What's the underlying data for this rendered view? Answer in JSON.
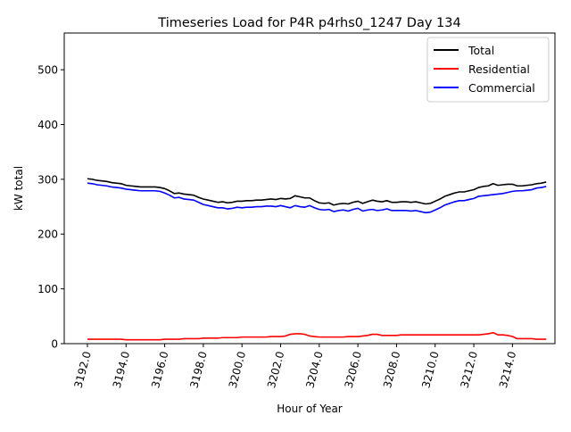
{
  "chart_data": {
    "type": "line",
    "title": "Timeseries Load for P4R p4rhs0_1247  Day 134",
    "xlabel": "Hour of Year",
    "ylabel": "kW total",
    "xlim": [
      3190.8,
      3216.2
    ],
    "ylim": [
      0,
      567
    ],
    "x_ticks": [
      3192,
      3194,
      3196,
      3198,
      3200,
      3202,
      3204,
      3206,
      3208,
      3210,
      3212,
      3214
    ],
    "x_tick_labels": [
      "3192.0",
      "3194.0",
      "3196.0",
      "3198.0",
      "3200.0",
      "3202.0",
      "3204.0",
      "3206.0",
      "3208.0",
      "3210.0",
      "3212.0",
      "3214.0"
    ],
    "y_ticks": [
      0,
      100,
      200,
      300,
      400,
      500
    ],
    "y_tick_labels": [
      "0",
      "100",
      "200",
      "300",
      "400",
      "500"
    ],
    "legend_position": "top-right",
    "grid": false,
    "x": [
      3192.0,
      3192.25,
      3192.5,
      3192.75,
      3193.0,
      3193.25,
      3193.5,
      3193.75,
      3194.0,
      3194.25,
      3194.5,
      3194.75,
      3195.0,
      3195.25,
      3195.5,
      3195.75,
      3196.0,
      3196.25,
      3196.5,
      3196.75,
      3197.0,
      3197.25,
      3197.5,
      3197.75,
      3198.0,
      3198.25,
      3198.5,
      3198.75,
      3199.0,
      3199.25,
      3199.5,
      3199.75,
      3200.0,
      3200.25,
      3200.5,
      3200.75,
      3201.0,
      3201.25,
      3201.5,
      3201.75,
      3202.0,
      3202.25,
      3202.5,
      3202.75,
      3203.0,
      3203.25,
      3203.5,
      3203.75,
      3204.0,
      3204.25,
      3204.5,
      3204.75,
      3205.0,
      3205.25,
      3205.5,
      3205.75,
      3206.0,
      3206.25,
      3206.5,
      3206.75,
      3207.0,
      3207.25,
      3207.5,
      3207.75,
      3208.0,
      3208.25,
      3208.5,
      3208.75,
      3209.0,
      3209.25,
      3209.5,
      3209.75,
      3210.0,
      3210.25,
      3210.5,
      3210.75,
      3211.0,
      3211.25,
      3211.5,
      3211.75,
      3212.0,
      3212.25,
      3212.5,
      3212.75,
      3213.0,
      3213.25,
      3213.5,
      3213.75,
      3214.0,
      3214.25,
      3214.5,
      3214.75,
      3215.0,
      3215.25,
      3215.5,
      3215.75
    ],
    "series": [
      {
        "name": "Total",
        "color": "#000000",
        "values": [
          301,
          300,
          298,
          297,
          296,
          294,
          293,
          292,
          289,
          288,
          287,
          286,
          286,
          286,
          286,
          285,
          283,
          279,
          274,
          275,
          273,
          272,
          271,
          267,
          264,
          262,
          260,
          258,
          259,
          257,
          258,
          260,
          260,
          261,
          261,
          262,
          262,
          263,
          264,
          263,
          265,
          264,
          265,
          270,
          268,
          266,
          266,
          261,
          257,
          256,
          257,
          253,
          255,
          256,
          255,
          258,
          260,
          256,
          259,
          262,
          260,
          259,
          261,
          258,
          258,
          259,
          259,
          258,
          259,
          257,
          255,
          256,
          260,
          264,
          269,
          272,
          275,
          277,
          277,
          279,
          281,
          285,
          287,
          288,
          292,
          289,
          290,
          291,
          291,
          288,
          288,
          289,
          290,
          292,
          293,
          295
        ]
      },
      {
        "name": "Residential",
        "color": "#ff0000",
        "values": [
          8,
          8,
          8,
          8,
          8,
          8,
          8,
          8,
          7,
          7,
          7,
          7,
          7,
          7,
          7,
          7,
          8,
          8,
          8,
          8,
          9,
          9,
          9,
          9,
          10,
          10,
          10,
          10,
          11,
          11,
          11,
          11,
          12,
          12,
          12,
          12,
          12,
          12,
          13,
          13,
          13,
          14,
          17,
          18,
          18,
          17,
          14,
          13,
          12,
          12,
          12,
          12,
          12,
          12,
          13,
          13,
          13,
          14,
          15,
          17,
          17,
          15,
          15,
          15,
          15,
          16,
          16,
          16,
          16,
          16,
          16,
          16,
          16,
          16,
          16,
          16,
          16,
          16,
          16,
          16,
          16,
          16,
          17,
          18,
          20,
          16,
          16,
          15,
          13,
          9,
          9,
          9,
          9,
          8,
          8,
          8
        ]
      },
      {
        "name": "Commercial",
        "color": "#0000ff",
        "values": [
          293,
          292,
          290,
          289,
          288,
          286,
          285,
          284,
          282,
          281,
          280,
          279,
          279,
          279,
          279,
          278,
          275,
          271,
          266,
          267,
          264,
          263,
          262,
          258,
          254,
          252,
          250,
          248,
          248,
          246,
          247,
          249,
          248,
          249,
          249,
          250,
          250,
          251,
          251,
          250,
          252,
          250,
          248,
          252,
          250,
          249,
          252,
          248,
          245,
          244,
          245,
          241,
          243,
          244,
          242,
          245,
          247,
          242,
          244,
          245,
          243,
          244,
          246,
          243,
          243,
          243,
          243,
          242,
          243,
          241,
          239,
          240,
          244,
          248,
          253,
          256,
          259,
          261,
          261,
          263,
          265,
          269,
          270,
          271,
          272,
          273,
          274,
          276,
          278,
          279,
          279,
          280,
          281,
          284,
          285,
          287
        ]
      }
    ]
  }
}
